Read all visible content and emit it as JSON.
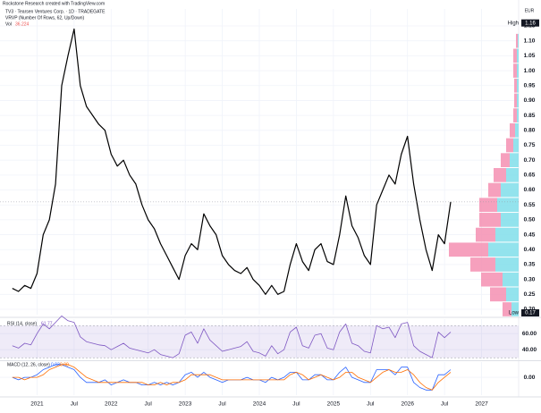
{
  "header": {
    "credit": "Rockstone Research created with TradingView.com",
    "symbol": "TV3 · Tearsen Ventures Corp. · 1D · TRADEGATE",
    "vrvp": "VRVP (Number Of Rows, 62, Up/Down)",
    "vol_label": "Vol",
    "vol_value": 36.224
  },
  "chart_data": [
    {
      "type": "line",
      "currency": "EUR",
      "x": [
        "2020-09",
        "2020-10",
        "2020-11",
        "2020-12",
        "2021-01",
        "2021-02",
        "2021-03",
        "2021-04",
        "2021-05",
        "2021-06",
        "2021-07",
        "2021-08",
        "2021-09",
        "2021-10",
        "2021-11",
        "2021-12",
        "2022-01",
        "2022-02",
        "2022-03",
        "2022-04",
        "2022-05",
        "2022-06",
        "2022-07",
        "2022-08",
        "2022-09",
        "2022-10",
        "2022-11",
        "2022-12",
        "2023-01",
        "2023-02",
        "2023-03",
        "2023-04",
        "2023-05",
        "2023-06",
        "2023-07",
        "2023-08",
        "2023-09",
        "2023-10",
        "2023-11",
        "2023-12",
        "2024-01",
        "2024-02",
        "2024-03",
        "2024-04",
        "2024-05",
        "2024-06",
        "2024-07",
        "2024-08",
        "2024-09",
        "2024-10",
        "2024-11",
        "2024-12",
        "2025-01",
        "2025-02",
        "2025-03",
        "2025-04",
        "2025-05",
        "2025-06",
        "2025-07",
        "2025-08",
        "2025-09",
        "2025-10",
        "2025-11",
        "2025-12",
        "2026-01",
        "2026-02",
        "2026-03",
        "2026-04",
        "2026-05",
        "2026-06",
        "2026-07",
        "2026-08"
      ],
      "series": [
        {
          "color": "#000000",
          "values": [
            0.27,
            0.26,
            0.28,
            0.27,
            0.32,
            0.45,
            0.5,
            0.62,
            0.95,
            1.05,
            1.14,
            0.95,
            0.88,
            0.85,
            0.82,
            0.8,
            0.72,
            0.68,
            0.7,
            0.65,
            0.62,
            0.55,
            0.5,
            0.47,
            0.42,
            0.38,
            0.34,
            0.3,
            0.38,
            0.42,
            0.4,
            0.52,
            0.48,
            0.45,
            0.38,
            0.35,
            0.33,
            0.32,
            0.34,
            0.3,
            0.28,
            0.25,
            0.28,
            0.25,
            0.26,
            0.35,
            0.42,
            0.36,
            0.33,
            0.4,
            0.42,
            0.36,
            0.35,
            0.45,
            0.58,
            0.48,
            0.44,
            0.38,
            0.35,
            0.55,
            0.6,
            0.65,
            0.62,
            0.72,
            0.78,
            0.62,
            0.5,
            0.4,
            0.33,
            0.45,
            0.42,
            0.56
          ]
        }
      ],
      "volume_profile": {
        "levels": [
          0.2,
          0.25,
          0.3,
          0.35,
          0.4,
          0.45,
          0.5,
          0.55,
          0.6,
          0.65,
          0.7,
          0.75,
          0.8,
          0.85,
          0.9,
          0.95,
          1.0,
          1.05,
          1.1
        ],
        "up": [
          8,
          14,
          18,
          26,
          34,
          26,
          20,
          24,
          20,
          14,
          10,
          6,
          4,
          2,
          2,
          2,
          2,
          2,
          1
        ],
        "down": [
          10,
          18,
          24,
          28,
          44,
          22,
          24,
          20,
          14,
          14,
          10,
          8,
          6,
          4,
          3,
          3,
          4,
          4,
          2
        ],
        "up_color": "#80deea",
        "down_color": "#f48fb1"
      },
      "high_label": "High",
      "high": 1.16,
      "low_label": "Low",
      "low": 0.17,
      "xlim": [
        "2020-07",
        "2027-07"
      ],
      "ylim": [
        0.182,
        1.207
      ],
      "yticks": [
        {
          "value": 0.2,
          "label": "0.20"
        },
        {
          "value": 0.25,
          "label": "0.25"
        },
        {
          "value": 0.3,
          "label": "0.30"
        },
        {
          "value": 0.35,
          "label": "0.35"
        },
        {
          "value": 0.4,
          "label": "0.40"
        },
        {
          "value": 0.45,
          "label": "0.45"
        },
        {
          "value": 0.5,
          "label": "0.50"
        },
        {
          "value": 0.55,
          "label": "0.55"
        },
        {
          "value": 0.6,
          "label": "0.60"
        },
        {
          "value": 0.65,
          "label": "0.65"
        },
        {
          "value": 0.7,
          "label": "0.70"
        },
        {
          "value": 0.75,
          "label": "0.75"
        },
        {
          "value": 0.8,
          "label": "0.80"
        },
        {
          "value": 0.85,
          "label": "0.85"
        },
        {
          "value": 0.9,
          "label": "0.90"
        },
        {
          "value": 0.95,
          "label": "0.95"
        },
        {
          "value": 1,
          "label": "1.00"
        },
        {
          "value": 1.05,
          "label": "1.05"
        },
        {
          "value": 1.1,
          "label": "1.10"
        },
        {
          "value": 1.15,
          "label": "1.15"
        }
      ]
    },
    {
      "type": "line",
      "title": "RSI (14, close)",
      "readout": 61.77,
      "band": [
        30,
        70
      ],
      "series": [
        {
          "color": "#7e57c2",
          "values": [
            45,
            42,
            48,
            46,
            60,
            72,
            66,
            74,
            82,
            76,
            74,
            56,
            50,
            48,
            46,
            45,
            40,
            44,
            48,
            42,
            40,
            38,
            36,
            40,
            34,
            32,
            30,
            35,
            58,
            62,
            48,
            66,
            52,
            45,
            38,
            40,
            42,
            44,
            50,
            38,
            36,
            32,
            45,
            35,
            40,
            62,
            68,
            45,
            42,
            58,
            60,
            42,
            40,
            62,
            72,
            48,
            45,
            38,
            36,
            70,
            66,
            68,
            55,
            72,
            74,
            45,
            38,
            34,
            30,
            62,
            55,
            62
          ]
        }
      ],
      "ylim": [
        28,
        78
      ],
      "yticks": [
        {
          "value": 60,
          "label": "60.00"
        },
        {
          "value": 40,
          "label": "40.00"
        }
      ]
    },
    {
      "type": "line",
      "title": "MACD (12, 26, close)",
      "readout": [
        0.03,
        {
          "value": 0,
          "label": "0.00"
        }
      ],
      "series": [
        {
          "color": "#2962ff",
          "values": [
            0.0,
            -0.01,
            0.0,
            0.0,
            0.01,
            0.03,
            0.04,
            0.05,
            0.05,
            0.04,
            0.03,
            0.0,
            -0.02,
            -0.02,
            -0.02,
            -0.01,
            -0.03,
            -0.02,
            -0.01,
            -0.02,
            -0.02,
            -0.03,
            -0.03,
            -0.02,
            -0.03,
            -0.02,
            -0.03,
            -0.02,
            0.01,
            0.02,
            0.0,
            0.02,
            0.0,
            -0.01,
            -0.02,
            -0.01,
            -0.01,
            -0.01,
            0.0,
            -0.01,
            -0.01,
            -0.02,
            0.0,
            -0.01,
            0.0,
            0.02,
            0.02,
            -0.01,
            -0.01,
            0.01,
            0.01,
            -0.01,
            -0.01,
            0.02,
            0.04,
            0.0,
            -0.01,
            -0.02,
            -0.02,
            0.03,
            0.03,
            0.03,
            0.01,
            0.04,
            0.04,
            -0.02,
            -0.04,
            -0.05,
            -0.05,
            0.01,
            0.01,
            0.03
          ]
        },
        {
          "color": "#ff6d00",
          "values": [
            0.0,
            0.0,
            -0.01,
            0.0,
            0.0,
            0.01,
            0.03,
            0.04,
            0.05,
            0.05,
            0.04,
            0.02,
            0.0,
            -0.01,
            -0.02,
            -0.02,
            -0.02,
            -0.02,
            -0.02,
            -0.02,
            -0.02,
            -0.02,
            -0.03,
            -0.03,
            -0.02,
            -0.03,
            -0.02,
            -0.02,
            -0.01,
            0.01,
            0.01,
            0.01,
            0.01,
            0.0,
            -0.01,
            -0.01,
            -0.01,
            -0.01,
            -0.01,
            -0.01,
            -0.01,
            -0.01,
            -0.01,
            -0.01,
            -0.01,
            0.01,
            0.02,
            0.01,
            -0.01,
            0.0,
            0.01,
            0.0,
            -0.01,
            0.0,
            0.02,
            0.02,
            0.0,
            -0.01,
            -0.02,
            0.0,
            0.02,
            0.03,
            0.02,
            0.02,
            0.03,
            0.01,
            -0.02,
            -0.04,
            -0.05,
            -0.02,
            0.0,
            0.02
          ]
        }
      ],
      "ylim": [
        -0.07,
        0.06
      ],
      "yticks": [
        {
          "value": 0,
          "label": "0.00"
        }
      ],
      "xticks": [
        {
          "value": "2021-01",
          "label": "2021"
        },
        {
          "value": "2021-07",
          "label": "Jul"
        },
        {
          "value": "2022-01",
          "label": "2022"
        },
        {
          "value": "2022-07",
          "label": "Jul"
        },
        {
          "value": "2023-01",
          "label": "2023"
        },
        {
          "value": "2023-07",
          "label": "Jul"
        },
        {
          "value": "2024-01",
          "label": "2024"
        },
        {
          "value": "2024-07",
          "label": "Jul"
        },
        {
          "value": "2025-01",
          "label": "2025"
        },
        {
          "value": "2025-07",
          "label": "Jul"
        },
        {
          "value": "2026-01",
          "label": "2026"
        },
        {
          "value": "2026-07",
          "label": "Jul"
        },
        {
          "value": "2027-01",
          "label": "2027"
        }
      ]
    }
  ]
}
